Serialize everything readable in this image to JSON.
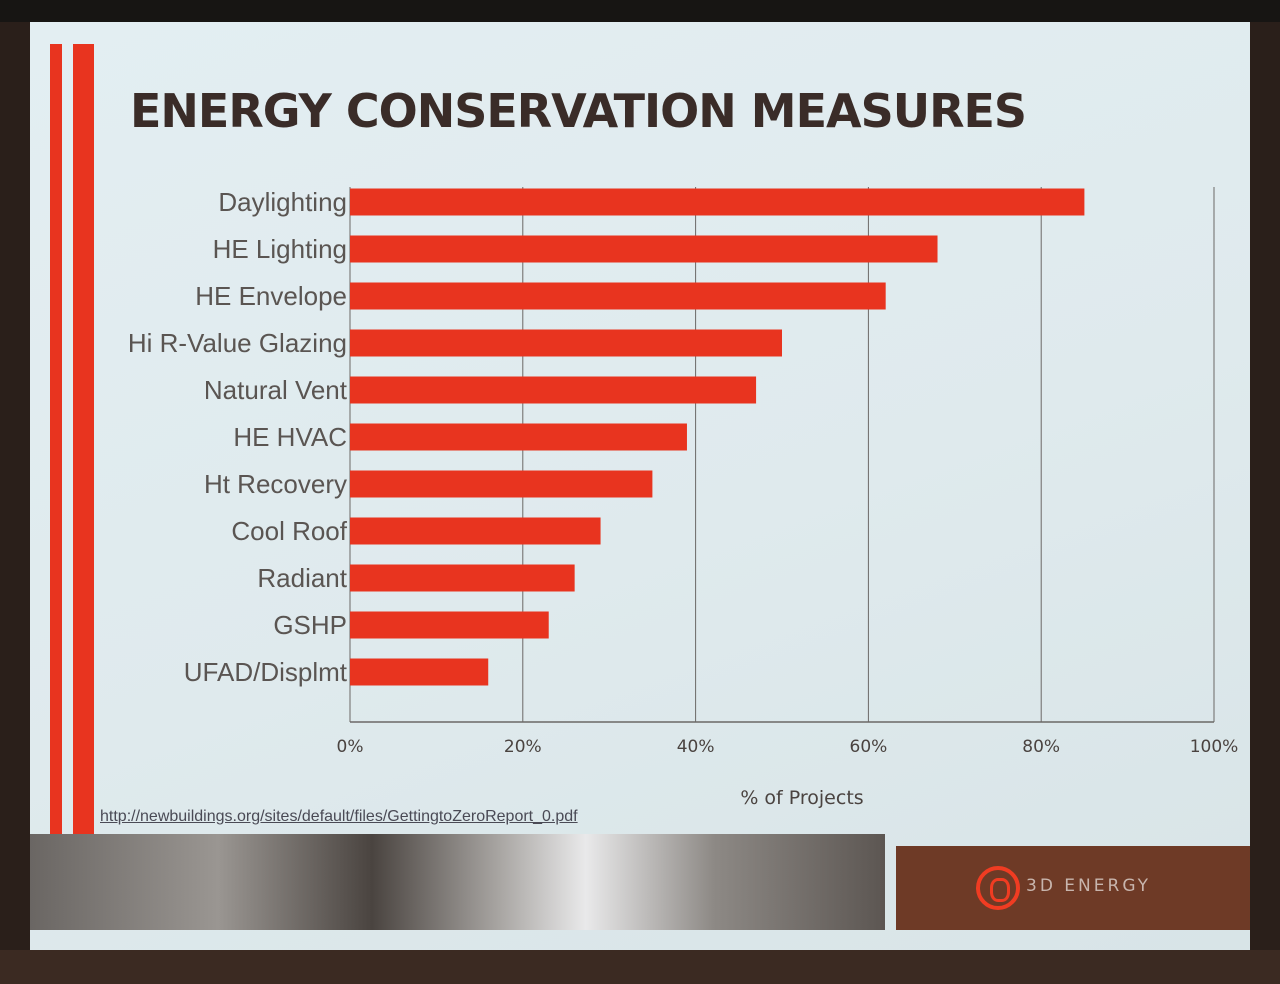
{
  "slide": {
    "title": "ENERGY CONSERVATION MEASURES",
    "source_url": "http://newbuildings.org/sites/default/files/GettingtoZeroReport_0.pdf",
    "logo_text": "3D ENERGY",
    "accent_color": "#e8341f",
    "bar_color": "#e8341f"
  },
  "chart_data": {
    "type": "bar",
    "orientation": "horizontal",
    "title": "ENERGY CONSERVATION MEASURES",
    "xlabel": "% of Projects",
    "ylabel": "",
    "xlim": [
      0,
      100
    ],
    "x_ticks": [
      "0%",
      "20%",
      "40%",
      "60%",
      "80%",
      "100%"
    ],
    "grid": true,
    "categories": [
      "Daylighting",
      "HE Lighting",
      "HE Envelope",
      "Hi R-Value Glazing",
      "Natural Vent",
      "HE HVAC",
      "Ht Recovery",
      "Cool Roof",
      "Radiant",
      "GSHP",
      "UFAD/Displmt"
    ],
    "values": [
      85,
      68,
      62,
      50,
      47,
      39,
      35,
      29,
      26,
      23,
      16
    ]
  }
}
